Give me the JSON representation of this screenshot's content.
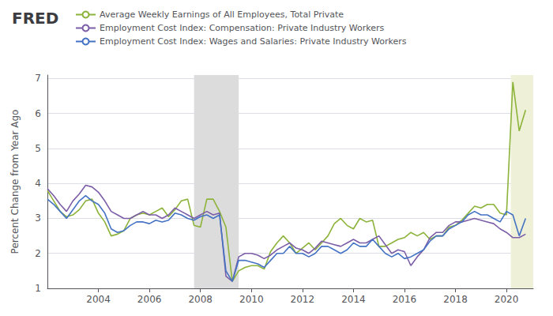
{
  "chart_data": {
    "type": "line",
    "title": "FRED",
    "ylabel": "Percent Change from Year Ago",
    "legend": "upper left",
    "grid": true,
    "xlim": [
      2002.0,
      2021.05
    ],
    "xticks": [
      2004,
      2006,
      2008,
      2010,
      2012,
      2014,
      2016,
      2018,
      2020
    ],
    "ylim": [
      1.0,
      7.1
    ],
    "yticks": [
      1,
      2,
      3,
      4,
      5,
      6,
      7
    ],
    "shaded_regions": [
      {
        "start": 2007.75,
        "end": 2009.5,
        "color": "#dcdcdc"
      },
      {
        "start": 2020.17,
        "end": 2021.05,
        "color": "#eef0d8"
      }
    ],
    "x": [
      2002.0,
      2002.25,
      2002.5,
      2002.75,
      2003.0,
      2003.25,
      2003.5,
      2003.75,
      2004.0,
      2004.25,
      2004.5,
      2004.75,
      2005.0,
      2005.25,
      2005.5,
      2005.75,
      2006.0,
      2006.25,
      2006.5,
      2006.75,
      2007.0,
      2007.25,
      2007.5,
      2007.75,
      2008.0,
      2008.25,
      2008.5,
      2008.75,
      2009.0,
      2009.25,
      2009.5,
      2009.75,
      2010.0,
      2010.25,
      2010.5,
      2010.75,
      2011.0,
      2011.25,
      2011.5,
      2011.75,
      2012.0,
      2012.25,
      2012.5,
      2012.75,
      2013.0,
      2013.25,
      2013.5,
      2013.75,
      2014.0,
      2014.25,
      2014.5,
      2014.75,
      2015.0,
      2015.25,
      2015.5,
      2015.75,
      2016.0,
      2016.25,
      2016.5,
      2016.75,
      2017.0,
      2017.25,
      2017.5,
      2017.75,
      2018.0,
      2018.25,
      2018.5,
      2018.75,
      2019.0,
      2019.25,
      2019.5,
      2019.75,
      2020.0,
      2020.25,
      2020.5,
      2020.75
    ],
    "series": [
      {
        "name": "Average Weekly Earnings of All Employees, Total Private",
        "color": "#8cb33a",
        "values": [
          3.8,
          3.5,
          3.2,
          3.05,
          3.1,
          3.25,
          3.5,
          3.55,
          3.15,
          2.9,
          2.5,
          2.55,
          2.65,
          3.0,
          3.1,
          3.15,
          3.1,
          3.2,
          3.3,
          3.05,
          3.25,
          3.5,
          3.55,
          2.8,
          2.75,
          3.55,
          3.55,
          3.2,
          2.75,
          1.2,
          1.5,
          1.6,
          1.65,
          1.65,
          1.55,
          2.05,
          2.3,
          2.5,
          2.3,
          2.0,
          2.15,
          2.3,
          2.1,
          2.3,
          2.5,
          2.85,
          3.0,
          2.8,
          2.7,
          3.0,
          2.9,
          2.95,
          2.2,
          2.2,
          2.3,
          2.4,
          2.45,
          2.6,
          2.5,
          2.6,
          2.4,
          2.5,
          2.5,
          2.75,
          2.8,
          2.95,
          3.15,
          3.35,
          3.3,
          3.4,
          3.4,
          3.15,
          3.1,
          6.9,
          5.5,
          6.1
        ]
      },
      {
        "name": "Employment Cost Index: Compensation: Private Industry Workers",
        "color": "#7b5ea7",
        "values": [
          3.85,
          3.65,
          3.4,
          3.2,
          3.5,
          3.7,
          3.95,
          3.9,
          3.75,
          3.5,
          3.2,
          3.1,
          3.0,
          3.0,
          3.1,
          3.2,
          3.1,
          3.1,
          3.0,
          3.1,
          3.3,
          3.2,
          3.1,
          3.0,
          3.1,
          3.2,
          3.1,
          3.15,
          1.35,
          1.2,
          1.9,
          2.0,
          2.0,
          1.95,
          1.85,
          1.95,
          2.1,
          2.2,
          2.3,
          2.15,
          2.1,
          2.0,
          2.15,
          2.35,
          2.3,
          2.25,
          2.2,
          2.3,
          2.4,
          2.3,
          2.3,
          2.4,
          2.5,
          2.25,
          2.0,
          2.1,
          2.05,
          1.65,
          1.9,
          2.1,
          2.45,
          2.6,
          2.6,
          2.8,
          2.9,
          2.9,
          2.95,
          3.0,
          2.95,
          2.9,
          2.85,
          2.7,
          2.6,
          2.45,
          2.45,
          2.55
        ]
      },
      {
        "name": "Employment Cost Index: Wages and Salaries: Private Industry Workers",
        "color": "#4472c4",
        "values": [
          3.55,
          3.4,
          3.2,
          3.0,
          3.25,
          3.5,
          3.65,
          3.5,
          3.4,
          3.15,
          2.7,
          2.6,
          2.65,
          2.8,
          2.9,
          2.9,
          2.85,
          2.95,
          2.9,
          2.95,
          3.15,
          3.1,
          3.0,
          2.95,
          3.05,
          3.1,
          3.0,
          3.1,
          1.5,
          1.2,
          1.8,
          1.8,
          1.75,
          1.7,
          1.6,
          1.8,
          2.0,
          2.0,
          2.2,
          2.0,
          2.0,
          1.9,
          2.0,
          2.2,
          2.2,
          2.1,
          2.0,
          2.1,
          2.3,
          2.2,
          2.2,
          2.4,
          2.2,
          2.0,
          1.9,
          2.0,
          1.85,
          1.9,
          2.0,
          2.1,
          2.35,
          2.5,
          2.5,
          2.7,
          2.8,
          2.9,
          3.1,
          3.2,
          3.1,
          3.1,
          3.0,
          2.9,
          3.2,
          3.1,
          2.5,
          3.0
        ]
      }
    ]
  }
}
